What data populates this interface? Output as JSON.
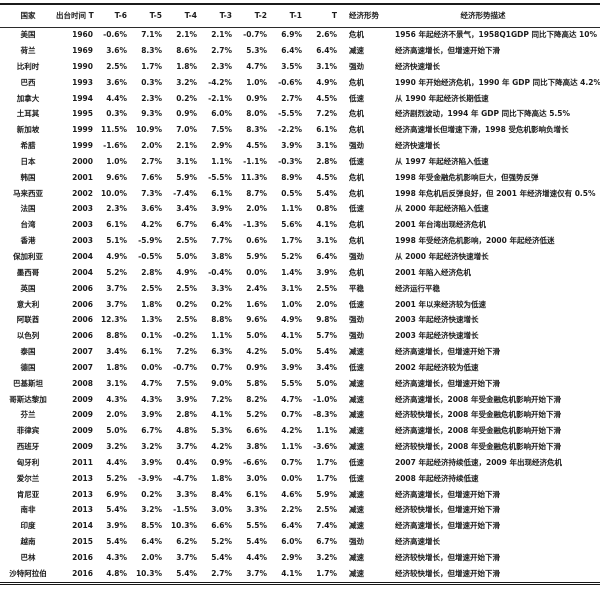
{
  "table": {
    "headers": [
      "国家",
      "出台时间 T",
      "T-6",
      "T-5",
      "T-4",
      "T-3",
      "T-2",
      "T-1",
      "T",
      "经济形势",
      "经济形势描述"
    ],
    "rows": [
      {
        "country": "美国",
        "year": "1960",
        "values": [
          "-0.6%",
          "7.1%",
          "2.1%",
          "2.1%",
          "-0.7%",
          "6.9%",
          "2.6%"
        ],
        "status": "危机",
        "desc": "1956 年起经济不景气，1958Q1GDP 同比下降高达 10%"
      },
      {
        "country": "荷兰",
        "year": "1969",
        "values": [
          "3.6%",
          "8.3%",
          "8.6%",
          "2.7%",
          "5.3%",
          "6.4%",
          "6.4%"
        ],
        "status": "减速",
        "desc": "经济高速增长，但增速开始下滑"
      },
      {
        "country": "比利时",
        "year": "1990",
        "values": [
          "2.5%",
          "1.7%",
          "1.8%",
          "2.3%",
          "4.7%",
          "3.5%",
          "3.1%"
        ],
        "status": "强劲",
        "desc": "经济快速增长"
      },
      {
        "country": "巴西",
        "year": "1993",
        "values": [
          "3.6%",
          "0.3%",
          "3.2%",
          "-4.2%",
          "1.0%",
          "-0.6%",
          "4.9%"
        ],
        "status": "危机",
        "desc": "1990 年开始经济危机，1990 年 GDP 同比下降高达 4.2%"
      },
      {
        "country": "加拿大",
        "year": "1994",
        "values": [
          "4.4%",
          "2.3%",
          "0.2%",
          "-2.1%",
          "0.9%",
          "2.7%",
          "4.5%"
        ],
        "status": "低速",
        "desc": "从 1990 年起经济长期低速"
      },
      {
        "country": "土耳其",
        "year": "1995",
        "values": [
          "0.3%",
          "9.3%",
          "0.9%",
          "6.0%",
          "8.0%",
          "-5.5%",
          "7.2%"
        ],
        "status": "危机",
        "desc": "经济剧烈波动，1994 年 GDP 同比下降高达 5.5%"
      },
      {
        "country": "新加坡",
        "year": "1999",
        "values": [
          "11.5%",
          "10.9%",
          "7.0%",
          "7.5%",
          "8.3%",
          "-2.2%",
          "6.1%"
        ],
        "status": "危机",
        "desc": "经济高速增长但增速下滑，1998 受危机影响负增长"
      },
      {
        "country": "希腊",
        "year": "1999",
        "values": [
          "-1.6%",
          "2.0%",
          "2.1%",
          "2.9%",
          "4.5%",
          "3.9%",
          "3.1%"
        ],
        "status": "强劲",
        "desc": "经济快速增长"
      },
      {
        "country": "日本",
        "year": "2000",
        "values": [
          "1.0%",
          "2.7%",
          "3.1%",
          "1.1%",
          "-1.1%",
          "-0.3%",
          "2.8%"
        ],
        "status": "低速",
        "desc": "从 1997 年起经济陷入低速"
      },
      {
        "country": "韩国",
        "year": "2001",
        "values": [
          "9.6%",
          "7.6%",
          "5.9%",
          "-5.5%",
          "11.3%",
          "8.9%",
          "4.5%"
        ],
        "status": "危机",
        "desc": "1998 年受金融危机影响巨大，但强势反弹"
      },
      {
        "country": "马来西亚",
        "year": "2002",
        "values": [
          "10.0%",
          "7.3%",
          "-7.4%",
          "6.1%",
          "8.7%",
          "0.5%",
          "5.4%"
        ],
        "status": "危机",
        "desc": "1998 年危机后反弹良好，但 2001 年经济增速仅有 0.5%"
      },
      {
        "country": "法国",
        "year": "2003",
        "values": [
          "2.3%",
          "3.6%",
          "3.4%",
          "3.9%",
          "2.0%",
          "1.1%",
          "0.8%"
        ],
        "status": "低速",
        "desc": "从 2000 年起经济陷入低速"
      },
      {
        "country": "台湾",
        "year": "2003",
        "values": [
          "6.1%",
          "4.2%",
          "6.7%",
          "6.4%",
          "-1.3%",
          "5.6%",
          "4.1%"
        ],
        "status": "危机",
        "desc": "2001 年台湾出现经济危机"
      },
      {
        "country": "香港",
        "year": "2003",
        "values": [
          "5.1%",
          "-5.9%",
          "2.5%",
          "7.7%",
          "0.6%",
          "1.7%",
          "3.1%"
        ],
        "status": "危机",
        "desc": "1998 年受经济危机影响，2000 年起经济低迷"
      },
      {
        "country": "保加利亚",
        "year": "2004",
        "values": [
          "4.9%",
          "-0.5%",
          "5.0%",
          "3.8%",
          "5.9%",
          "5.2%",
          "6.4%"
        ],
        "status": "强劲",
        "desc": "从 2000 年起经济快速增长"
      },
      {
        "country": "墨西哥",
        "year": "2004",
        "values": [
          "5.2%",
          "2.8%",
          "4.9%",
          "-0.4%",
          "0.0%",
          "1.4%",
          "3.9%"
        ],
        "status": "危机",
        "desc": "2001 年陷入经济危机"
      },
      {
        "country": "英国",
        "year": "2006",
        "values": [
          "3.7%",
          "2.5%",
          "2.5%",
          "3.3%",
          "2.4%",
          "3.1%",
          "2.5%"
        ],
        "status": "平稳",
        "desc": "经济运行平稳"
      },
      {
        "country": "意大利",
        "year": "2006",
        "values": [
          "3.7%",
          "1.8%",
          "0.2%",
          "0.2%",
          "1.6%",
          "1.0%",
          "2.0%"
        ],
        "status": "低速",
        "desc": "2001 年以来经济较为低速"
      },
      {
        "country": "阿联酋",
        "year": "2006",
        "values": [
          "12.3%",
          "1.3%",
          "2.5%",
          "8.8%",
          "9.6%",
          "4.9%",
          "9.8%"
        ],
        "status": "强劲",
        "desc": "2003 年起经济快速增长"
      },
      {
        "country": "以色列",
        "year": "2006",
        "values": [
          "8.8%",
          "0.1%",
          "-0.2%",
          "1.1%",
          "5.0%",
          "4.1%",
          "5.7%"
        ],
        "status": "强劲",
        "desc": "2003 年起经济快速增长"
      },
      {
        "country": "泰国",
        "year": "2007",
        "values": [
          "3.4%",
          "6.1%",
          "7.2%",
          "6.3%",
          "4.2%",
          "5.0%",
          "5.4%"
        ],
        "status": "减速",
        "desc": "经济高速增长，但增速开始下滑"
      },
      {
        "country": "德国",
        "year": "2007",
        "values": [
          "1.8%",
          "0.0%",
          "-0.7%",
          "0.7%",
          "0.9%",
          "3.9%",
          "3.4%"
        ],
        "status": "低速",
        "desc": "2002 年起经济较为低速"
      },
      {
        "country": "巴基斯坦",
        "year": "2008",
        "values": [
          "3.1%",
          "4.7%",
          "7.5%",
          "9.0%",
          "5.8%",
          "5.5%",
          "5.0%"
        ],
        "status": "减速",
        "desc": "经济高速增长，但增速开始下滑"
      },
      {
        "country": "哥斯达黎加",
        "year": "2009",
        "values": [
          "4.3%",
          "4.3%",
          "3.9%",
          "7.2%",
          "8.2%",
          "4.7%",
          "-1.0%"
        ],
        "status": "减速",
        "desc": "经济高速增长，2008 年受金融危机影响开始下滑"
      },
      {
        "country": "芬兰",
        "year": "2009",
        "values": [
          "2.0%",
          "3.9%",
          "2.8%",
          "4.1%",
          "5.2%",
          "0.7%",
          "-8.3%"
        ],
        "status": "减速",
        "desc": "经济较快增长，2008 年受金融危机影响开始下滑"
      },
      {
        "country": "菲律宾",
        "year": "2009",
        "values": [
          "5.0%",
          "6.7%",
          "4.8%",
          "5.3%",
          "6.6%",
          "4.2%",
          "1.1%"
        ],
        "status": "减速",
        "desc": "经济高速增长，2008 年受金融危机影响开始下滑"
      },
      {
        "country": "西班牙",
        "year": "2009",
        "values": [
          "3.2%",
          "3.2%",
          "3.7%",
          "4.2%",
          "3.8%",
          "1.1%",
          "-3.6%"
        ],
        "status": "减速",
        "desc": "经济较快增长，2008 年受金融危机影响开始下滑"
      },
      {
        "country": "匈牙利",
        "year": "2011",
        "values": [
          "4.4%",
          "3.9%",
          "0.4%",
          "0.9%",
          "-6.6%",
          "0.7%",
          "1.7%"
        ],
        "status": "低速",
        "desc": "2007 年起经济持续低速，2009 年出现经济危机"
      },
      {
        "country": "爱尔兰",
        "year": "2013",
        "values": [
          "5.2%",
          "-3.9%",
          "-4.7%",
          "1.8%",
          "3.0%",
          "0.0%",
          "1.7%"
        ],
        "status": "低速",
        "desc": "2008 年起经济持续低速"
      },
      {
        "country": "肯尼亚",
        "year": "2013",
        "values": [
          "6.9%",
          "0.2%",
          "3.3%",
          "8.4%",
          "6.1%",
          "4.6%",
          "5.9%"
        ],
        "status": "减速",
        "desc": "经济高速增长，但增速开始下滑"
      },
      {
        "country": "南非",
        "year": "2013",
        "values": [
          "5.4%",
          "3.2%",
          "-1.5%",
          "3.0%",
          "3.3%",
          "2.2%",
          "2.5%"
        ],
        "status": "减速",
        "desc": "经济较快增长，但增速开始下滑"
      },
      {
        "country": "印度",
        "year": "2014",
        "values": [
          "3.9%",
          "8.5%",
          "10.3%",
          "6.6%",
          "5.5%",
          "6.4%",
          "7.4%"
        ],
        "status": "减速",
        "desc": "经济高速增长，但增速开始下滑"
      },
      {
        "country": "越南",
        "year": "2015",
        "values": [
          "5.4%",
          "6.4%",
          "6.2%",
          "5.2%",
          "5.4%",
          "6.0%",
          "6.7%"
        ],
        "status": "强劲",
        "desc": "经济高速增长"
      },
      {
        "country": "巴林",
        "year": "2016",
        "values": [
          "4.3%",
          "2.0%",
          "3.7%",
          "5.4%",
          "4.4%",
          "2.9%",
          "3.2%"
        ],
        "status": "减速",
        "desc": "经济较快增长，但增速开始下滑"
      },
      {
        "country": "沙特阿拉伯",
        "year": "2016",
        "values": [
          "4.8%",
          "10.3%",
          "5.4%",
          "2.7%",
          "3.7%",
          "4.1%",
          "1.7%"
        ],
        "status": "减速",
        "desc": "经济较快增长，但增速开始下滑"
      }
    ]
  }
}
